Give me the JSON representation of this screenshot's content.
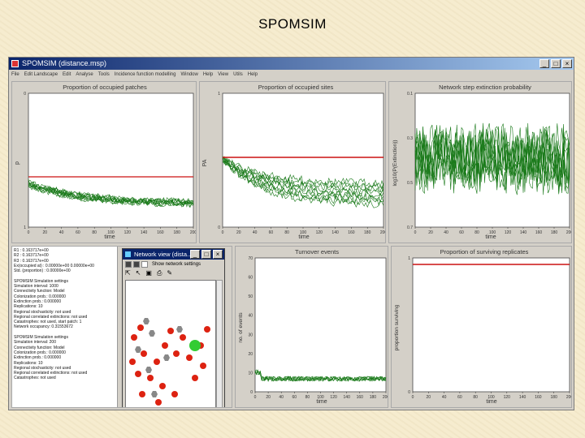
{
  "slide_title": "SPOMSIM",
  "window": {
    "title": "SPOMSIM (distance.msp)",
    "buttons": [
      "_",
      "□",
      "×"
    ],
    "menu": [
      "File",
      "Edit Landscape",
      "Edit",
      "Analyse",
      "Tools",
      "Incidence function modelling",
      "Window",
      "Help",
      "View",
      "Utils",
      "Help"
    ]
  },
  "colors": {
    "series": "#1a7a1a",
    "reference": "#cc1111",
    "panel": "#d4d0c8"
  },
  "charts": {
    "p1": {
      "title": "Proportion of occupied patches",
      "ylabel": "p",
      "xlabel": "time",
      "xticks": [
        "0",
        "20",
        "40",
        "60",
        "80",
        "100",
        "120",
        "140",
        "160",
        "180",
        "200"
      ],
      "yticks": [
        "0",
        "1"
      ]
    },
    "p2": {
      "title": "Proportion of occupied sites",
      "ylabel": "PA",
      "xlabel": "time",
      "xticks": [
        "0",
        "20",
        "40",
        "60",
        "80",
        "100",
        "120",
        "140",
        "160",
        "180",
        "200"
      ],
      "yticks": [
        "1",
        "0"
      ]
    },
    "p3": {
      "title": "Network step extinction probability",
      "ylabel": "log10(P(Extinction))",
      "xlabel": "time",
      "xticks": [
        "0",
        "20",
        "40",
        "60",
        "80",
        "100",
        "120",
        "140",
        "160",
        "180",
        "200"
      ],
      "yticks": [
        "0.1",
        "0.3",
        "0.5",
        "0.7"
      ]
    },
    "p5": {
      "title": "Turnover events",
      "ylabel": "no. of events",
      "xlabel": "time",
      "xticks": [
        "0",
        "20",
        "40",
        "60",
        "80",
        "100",
        "120",
        "140",
        "160",
        "180",
        "200"
      ],
      "yticks": [
        "70",
        "60",
        "50",
        "40",
        "30",
        "20",
        "10",
        "0"
      ]
    },
    "p6": {
      "title": "Proportion of surviving replicates",
      "ylabel": "proportion surviving",
      "xlabel": "time",
      "xticks": [
        "0",
        "20",
        "40",
        "60",
        "80",
        "100",
        "120",
        "140",
        "160",
        "180",
        "200"
      ],
      "yticks": [
        "1",
        "0"
      ]
    }
  },
  "log_lines": [
    "R1 : 0.163717e+00",
    "R2 : 0.163717e+00",
    "R3 : 0.163717e+00",
    "Ex(occupied at) : 0.00000e+00 0.00000e+00",
    "Std. (proportion) : 0.00000e+00",
    "",
    "SPOMSIM Simulation settings",
    "Simulation interval: 1000",
    "Connectivity function: Model",
    "Colonization prob.: 0.000000",
    "Extinction prob.: 0.000000",
    "Replications: 10",
    "Regional stochasticity: not used",
    "Regional correlated extinctions: not used",
    "Catastrophes: not used, start patch: 1",
    "Network occupancy: 0.31553672",
    "",
    "SPOMSIM Simulation settings",
    "Simulation interval: 200",
    "Connectivity function: Model",
    "Colonization prob.: 0.000000",
    "Extinction prob.: 0.000000",
    "Replications: 10",
    "Regional stochasticity: not used",
    "Regional correlated extinctions: not used",
    "Catastrophes: not used"
  ],
  "network_view": {
    "title": "Network view (dista...",
    "toolbar_label": "Show network settings",
    "tools": [
      "lasso",
      "select",
      "save",
      "print",
      "pencil"
    ]
  }
}
